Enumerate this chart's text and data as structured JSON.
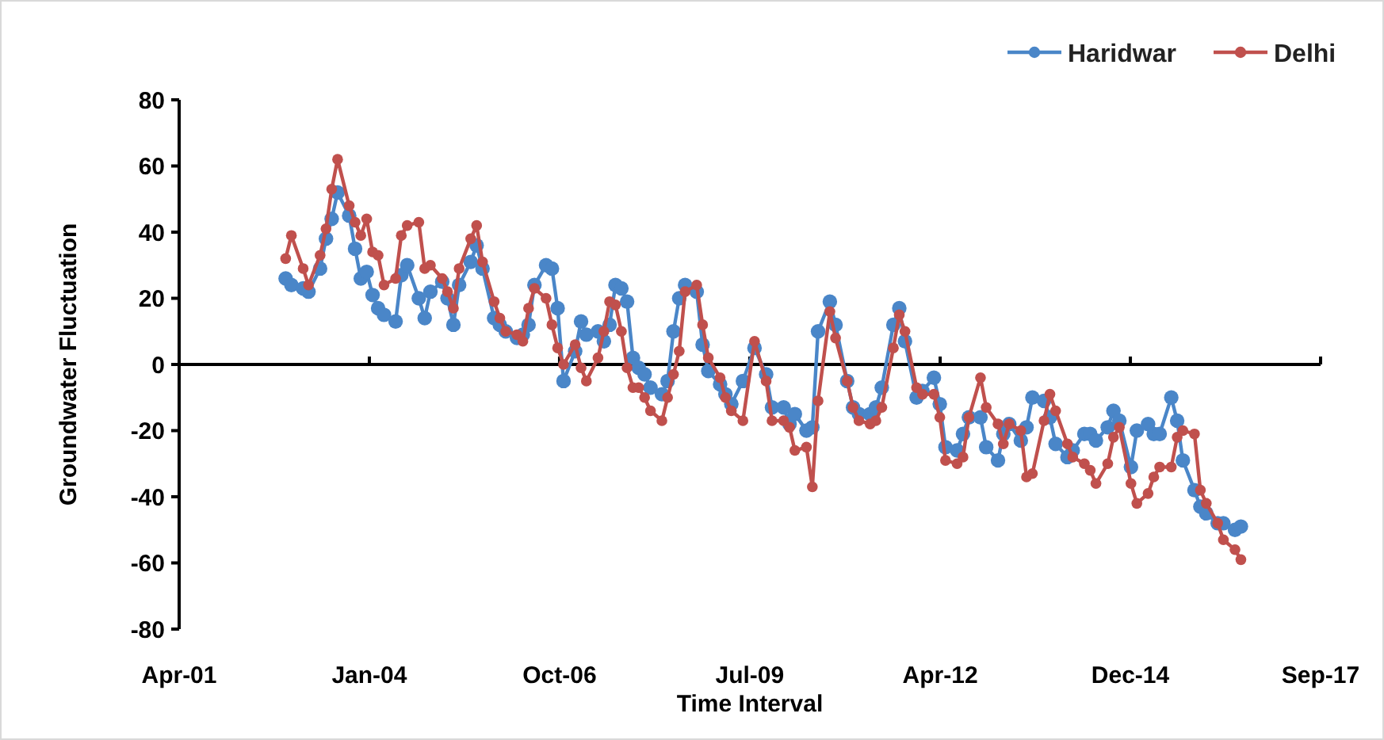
{
  "chart_data": {
    "type": "line",
    "xlabel": "Time Interval",
    "ylabel": "Groundwater Fluctuation",
    "x": [
      "2002-11",
      "2002-12",
      "2003-02",
      "2003-03",
      "2003-05",
      "2003-06",
      "2003-07",
      "2003-08",
      "2003-10",
      "2003-11",
      "2003-12",
      "2004-01",
      "2004-02",
      "2004-03",
      "2004-04",
      "2004-06",
      "2004-07",
      "2004-08",
      "2004-10",
      "2004-11",
      "2004-12",
      "2005-02",
      "2005-03",
      "2005-04",
      "2005-05",
      "2005-07",
      "2005-08",
      "2005-09",
      "2005-11",
      "2005-12",
      "2006-01",
      "2006-03",
      "2006-04",
      "2006-05",
      "2006-06",
      "2006-08",
      "2006-09",
      "2006-10",
      "2006-11",
      "2007-01",
      "2007-02",
      "2007-03",
      "2007-05",
      "2007-06",
      "2007-07",
      "2007-08",
      "2007-09",
      "2007-10",
      "2007-11",
      "2007-12",
      "2008-01",
      "2008-02",
      "2008-04",
      "2008-05",
      "2008-06",
      "2008-07",
      "2008-08",
      "2008-10",
      "2008-11",
      "2008-12",
      "2009-02",
      "2009-03",
      "2009-04",
      "2009-06",
      "2009-08",
      "2009-10",
      "2009-11",
      "2010-01",
      "2010-02",
      "2010-03",
      "2010-05",
      "2010-06",
      "2010-07",
      "2010-09",
      "2010-10",
      "2010-12",
      "2011-01",
      "2011-02",
      "2011-04",
      "2011-05",
      "2011-06",
      "2011-08",
      "2011-09",
      "2011-10",
      "2011-12",
      "2012-01",
      "2012-03",
      "2012-04",
      "2012-05",
      "2012-07",
      "2012-08",
      "2012-09",
      "2012-11",
      "2012-12",
      "2013-02",
      "2013-03",
      "2013-04",
      "2013-06",
      "2013-07",
      "2013-08",
      "2013-10",
      "2013-11",
      "2013-12",
      "2014-02",
      "2014-03",
      "2014-05",
      "2014-06",
      "2014-07",
      "2014-09",
      "2014-10",
      "2014-11",
      "2015-01",
      "2015-02",
      "2015-04",
      "2015-05",
      "2015-06",
      "2015-08",
      "2015-09",
      "2015-10",
      "2015-12",
      "2016-01",
      "2016-02",
      "2016-04",
      "2016-05",
      "2016-07",
      "2016-08"
    ],
    "series": [
      {
        "name": "Haridwar",
        "color": "#4a86c8",
        "values": [
          26,
          24,
          23,
          22,
          29,
          38,
          44,
          52,
          45,
          35,
          26,
          28,
          21,
          17,
          15,
          13,
          27,
          30,
          20,
          14,
          22,
          25,
          20,
          12,
          24,
          31,
          36,
          29,
          14,
          12,
          10,
          8,
          9,
          12,
          24,
          30,
          29,
          17,
          -5,
          4,
          13,
          9,
          10,
          7,
          12,
          24,
          23,
          19,
          2,
          -1,
          -3,
          -7,
          -9,
          -5,
          10,
          20,
          24,
          22,
          6,
          -2,
          -6,
          -9,
          -12,
          -5,
          5,
          -3,
          -13,
          -13,
          -18,
          -15,
          -20,
          -19,
          10,
          19,
          12,
          -5,
          -13,
          -15,
          -15,
          -13,
          -7,
          12,
          17,
          7,
          -10,
          -8,
          -4,
          -12,
          -25,
          -26,
          -21,
          -16,
          -16,
          -25,
          -29,
          -21,
          -18,
          -23,
          -19,
          -10,
          -11,
          -16,
          -24,
          -28,
          -26,
          -21,
          -21,
          -23,
          -19,
          -14,
          -17,
          -31,
          -20,
          -18,
          -21,
          -21,
          -10,
          -17,
          -29,
          -38,
          -43,
          -45,
          -48,
          -48,
          -50,
          -49
        ]
      },
      {
        "name": "Delhi",
        "color": "#c0504d",
        "values": [
          32,
          39,
          29,
          24,
          33,
          41,
          53,
          62,
          48,
          43,
          39,
          44,
          34,
          33,
          24,
          26,
          39,
          42,
          43,
          29,
          30,
          26,
          22,
          17,
          29,
          38,
          42,
          31,
          19,
          14,
          10,
          9,
          7,
          17,
          23,
          20,
          12,
          5,
          0,
          6,
          -1,
          -5,
          2,
          10,
          19,
          18,
          10,
          -1,
          -7,
          -7,
          -10,
          -14,
          -17,
          -10,
          -3,
          4,
          22,
          24,
          12,
          2,
          -4,
          -10,
          -14,
          -17,
          7,
          -5,
          -17,
          -17,
          -19,
          -26,
          -25,
          -37,
          -11,
          16,
          8,
          -5,
          -13,
          -17,
          -18,
          -17,
          -13,
          5,
          15,
          10,
          -7,
          -9,
          -9,
          -16,
          -29,
          -30,
          -28,
          -16,
          -4,
          -13,
          -18,
          -24,
          -18,
          -20,
          -34,
          -33,
          -17,
          -9,
          -14,
          -24,
          -28,
          -30,
          -32,
          -36,
          -30,
          -22,
          -19,
          -36,
          -42,
          -39,
          -34,
          -31,
          -31,
          -22,
          -20,
          -21,
          -38,
          -42,
          -48,
          -53,
          -56,
          -59
        ]
      }
    ],
    "xlim": [
      "2001-04-20",
      "2017-09-24"
    ],
    "xticks": [
      {
        "value": "2001-04-20",
        "label": "Apr-01"
      },
      {
        "value": "2004-01-15",
        "label": "Jan-04"
      },
      {
        "value": "2006-10-11",
        "label": "Oct-06"
      },
      {
        "value": "2009-07-07",
        "label": "Jul-09"
      },
      {
        "value": "2012-04-03",
        "label": "Apr-12"
      },
      {
        "value": "2014-12-29",
        "label": "Dec-14"
      },
      {
        "value": "2017-09-24",
        "label": "Sep-17"
      }
    ],
    "ylim": [
      -80,
      80
    ],
    "yticks": [
      -80,
      -60,
      -40,
      -20,
      0,
      20,
      40,
      60,
      80
    ],
    "marker": "circle",
    "legend": "top right"
  }
}
